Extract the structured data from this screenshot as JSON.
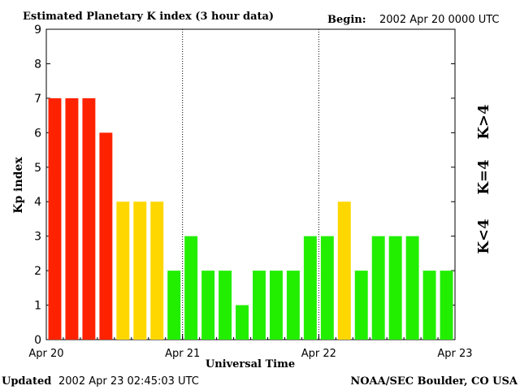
{
  "header": {
    "title": "Estimated Planetary K index (3 hour data)",
    "begin_label": "Begin:",
    "begin_value": "2002 Apr 20 0000 UTC"
  },
  "footer": {
    "updated_label": "Updated",
    "updated_value": "2002 Apr 23 02:45:03 UTC",
    "source": "NOAA/SEC Boulder, CO USA"
  },
  "legend": {
    "high": {
      "label": "K>4",
      "color": "#ff2200"
    },
    "mid": {
      "label": "K=4",
      "color": "#ffd700"
    },
    "low": {
      "label": "K<4",
      "color": "#22ee00"
    }
  },
  "chart_data": {
    "type": "bar",
    "title": "Estimated Planetary K index (3 hour data)",
    "xlabel": "Universal Time",
    "ylabel": "Kp index",
    "ylim": [
      0,
      9
    ],
    "yticks": [
      "0",
      "1",
      "2",
      "3",
      "4",
      "5",
      "6",
      "7",
      "8",
      "9"
    ],
    "xlim": [
      0,
      24
    ],
    "xticks": [
      {
        "label": "Apr 20",
        "pos": 0
      },
      {
        "label": "Apr 21",
        "pos": 8
      },
      {
        "label": "Apr 22",
        "pos": 16
      },
      {
        "label": "Apr 23",
        "pos": 24
      }
    ],
    "day_dividers": [
      8,
      16
    ],
    "interval_hours": 3,
    "values": [
      7,
      7,
      7,
      6,
      4,
      4,
      4,
      2,
      3,
      2,
      2,
      1,
      2,
      2,
      2,
      3,
      3,
      4,
      2,
      3,
      3,
      3,
      2,
      2
    ],
    "colors": {
      "above4": "#ff2200",
      "equal4": "#ffd700",
      "below4": "#22ee00"
    }
  }
}
